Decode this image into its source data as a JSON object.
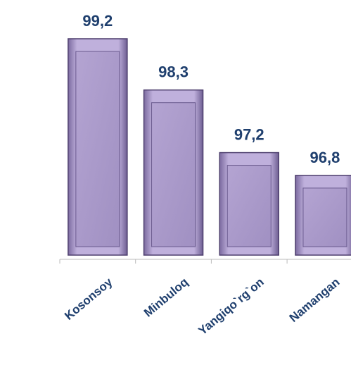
{
  "chart_data": {
    "type": "bar",
    "categories": [
      "Kosonsoy",
      "Minbuloq",
      "Yangiqo`rg`on",
      "Namangan"
    ],
    "values": [
      99.2,
      98.3,
      97.2,
      96.8
    ],
    "value_labels": [
      "99,2",
      "98,3",
      "97,2",
      "96,8"
    ],
    "color": "#a898c8",
    "ylim": [
      95.4,
      99.8
    ]
  }
}
